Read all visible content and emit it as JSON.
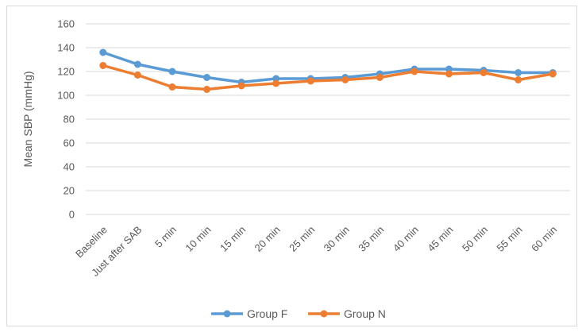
{
  "chart_data": {
    "type": "line",
    "title": "",
    "xlabel": "",
    "ylabel": "Mean SBP (mmHg)",
    "ylim": [
      0,
      160
    ],
    "yticks": [
      0,
      20,
      40,
      60,
      80,
      100,
      120,
      140,
      160
    ],
    "grid": true,
    "legend": "bottom",
    "categories": [
      "Baseline",
      "Just after SAB",
      "5 min",
      "10 min",
      "15 min",
      "20 min",
      "25 min",
      "30 min",
      "35 min",
      "40 min",
      "45 min",
      "50 min",
      "55 min",
      "60 min"
    ],
    "series": [
      {
        "name": "Group F",
        "color": "#5b9bd5",
        "values": [
          136,
          126,
          120,
          115,
          111,
          114,
          114,
          115,
          118,
          122,
          122,
          121,
          119,
          119
        ]
      },
      {
        "name": "Group N",
        "color": "#ed7d31",
        "values": [
          125,
          117,
          107,
          105,
          108,
          110,
          112,
          113,
          115,
          120,
          118,
          119,
          113,
          118
        ]
      }
    ]
  }
}
